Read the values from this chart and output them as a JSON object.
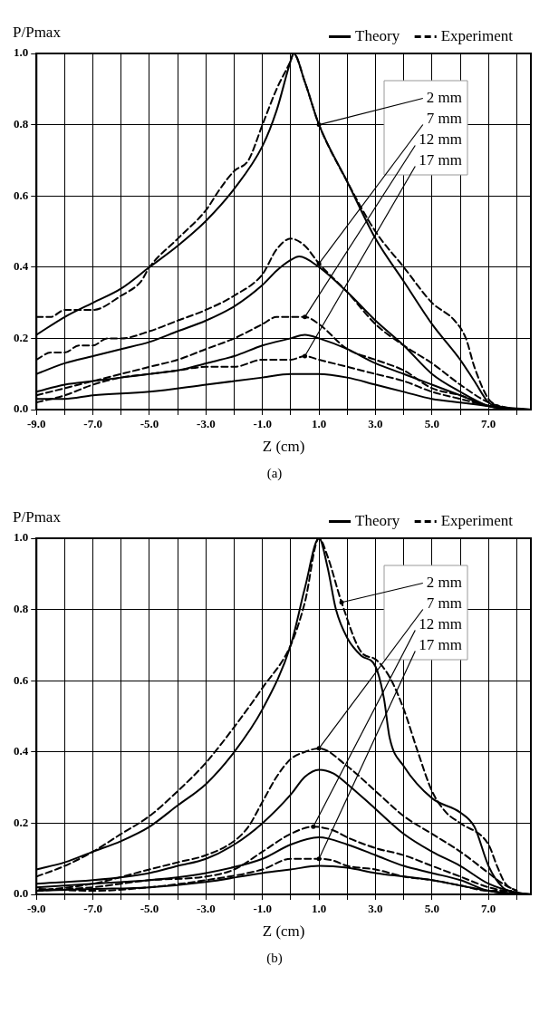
{
  "chart_data": [
    {
      "type": "line",
      "xlabel": "Z (cm)",
      "ylabel": "P/Pmax",
      "xlim": [
        -9,
        8.5
      ],
      "ylim": [
        0,
        1
      ],
      "xticks": [
        {
          "value": -9,
          "label": "-9.0"
        },
        {
          "value": -8,
          "label": null
        },
        {
          "value": -7,
          "label": "-7.0"
        },
        {
          "value": -6,
          "label": null
        },
        {
          "value": -5,
          "label": "-5.0"
        },
        {
          "value": -4,
          "label": null
        },
        {
          "value": -3,
          "label": "-3.0"
        },
        {
          "value": -2,
          "label": null
        },
        {
          "value": -1,
          "label": "-1.0"
        },
        {
          "value": 0,
          "label": null
        },
        {
          "value": 1,
          "label": "1.0"
        },
        {
          "value": 2,
          "label": null
        },
        {
          "value": 3,
          "label": "3.0"
        },
        {
          "value": 4,
          "label": null
        },
        {
          "value": 5,
          "label": "5.0"
        },
        {
          "value": 6,
          "label": null
        },
        {
          "value": 7,
          "label": "7.0"
        },
        {
          "value": 8,
          "label": null
        }
      ],
      "yticks": [
        {
          "value": 0,
          "label": "0.0"
        },
        {
          "value": 0.2,
          "label": "0.2"
        },
        {
          "value": 0.4,
          "label": "0.4"
        },
        {
          "value": 0.6,
          "label": "0.6"
        },
        {
          "value": 0.8,
          "label": "0.8"
        },
        {
          "value": 1,
          "label": "1.0"
        }
      ],
      "grid": true,
      "legend": "top",
      "marker": "none",
      "series": [
        {
          "name": "Theory",
          "color": "#000000",
          "line_style": "solid",
          "x": [
            -9,
            -8,
            -7,
            -6,
            -5,
            -4,
            -3,
            -2,
            -1,
            -0.5,
            0,
            0.1,
            0.5,
            1,
            2,
            3,
            4,
            5,
            6,
            6.5,
            7,
            7.5,
            8.5
          ],
          "values": [
            0.21,
            0.26,
            0.3,
            0.34,
            0.4,
            0.46,
            0.53,
            0.62,
            0.74,
            0.84,
            0.98,
            1.0,
            0.92,
            0.8,
            0.64,
            0.48,
            0.36,
            0.24,
            0.14,
            0.08,
            0.02,
            0.005,
            0
          ]
        },
        {
          "name": "Experiment",
          "color": "#000000",
          "line_style": "dashed",
          "x": [
            -9,
            -8.5,
            -8,
            -7,
            -6,
            -5.3,
            -5,
            -4,
            -3,
            -2.5,
            -2,
            -1.5,
            -1,
            -0.5,
            0,
            0.1,
            0.5,
            1,
            2,
            3,
            4,
            5,
            5.8,
            6.2,
            6.5,
            7,
            7.5
          ],
          "values": [
            0.26,
            0.26,
            0.28,
            0.28,
            0.32,
            0.36,
            0.4,
            0.48,
            0.56,
            0.62,
            0.67,
            0.7,
            0.8,
            0.9,
            0.98,
            1.0,
            0.92,
            0.8,
            0.64,
            0.5,
            0.4,
            0.3,
            0.25,
            0.2,
            0.12,
            0.03,
            0.005
          ]
        },
        {
          "color": "#000000",
          "line_style": "solid",
          "x": [
            -9,
            -8,
            -7,
            -6,
            -5,
            -4,
            -3,
            -2,
            -1,
            -0.5,
            0,
            0.3,
            1,
            2,
            3,
            4,
            5,
            6,
            7,
            7.5,
            8.5
          ],
          "values": [
            0.1,
            0.13,
            0.15,
            0.17,
            0.19,
            0.22,
            0.25,
            0.29,
            0.35,
            0.39,
            0.42,
            0.43,
            0.4,
            0.33,
            0.25,
            0.18,
            0.1,
            0.05,
            0.01,
            0.003,
            0
          ]
        },
        {
          "color": "#000000",
          "line_style": "dashed",
          "x": [
            -9,
            -8.5,
            -8,
            -7.5,
            -7,
            -6.5,
            -6,
            -5,
            -4,
            -3,
            -2,
            -1,
            -0.5,
            0,
            0.5,
            1,
            2,
            3,
            4,
            5,
            6,
            7,
            7.8
          ],
          "values": [
            0.14,
            0.16,
            0.16,
            0.18,
            0.18,
            0.2,
            0.2,
            0.22,
            0.25,
            0.28,
            0.32,
            0.38,
            0.45,
            0.48,
            0.46,
            0.41,
            0.33,
            0.24,
            0.18,
            0.13,
            0.07,
            0.02,
            0.003
          ]
        },
        {
          "color": "#000000",
          "line_style": "solid",
          "x": [
            -9,
            -8,
            -7,
            -6,
            -5,
            -4,
            -3,
            -2,
            -1,
            0,
            0.5,
            1,
            2,
            3,
            4,
            5,
            6,
            7,
            8.5
          ],
          "values": [
            0.05,
            0.07,
            0.08,
            0.09,
            0.1,
            0.11,
            0.13,
            0.15,
            0.18,
            0.2,
            0.21,
            0.2,
            0.17,
            0.13,
            0.1,
            0.07,
            0.04,
            0.01,
            0
          ]
        },
        {
          "color": "#000000",
          "line_style": "dashed",
          "x": [
            -9,
            -8,
            -7,
            -6,
            -5,
            -4,
            -3,
            -2,
            -1,
            -0.5,
            0.5,
            1,
            2,
            3,
            4,
            5,
            6,
            7,
            7.7
          ],
          "values": [
            0.04,
            0.06,
            0.08,
            0.1,
            0.12,
            0.14,
            0.17,
            0.2,
            0.24,
            0.26,
            0.26,
            0.24,
            0.17,
            0.14,
            0.11,
            0.06,
            0.04,
            0.01,
            0.003
          ]
        },
        {
          "color": "#000000",
          "line_style": "solid",
          "x": [
            -9,
            -8,
            -7,
            -5,
            -3,
            -1,
            0,
            0.5,
            1,
            2,
            3,
            4,
            5,
            6,
            7,
            8.5
          ],
          "values": [
            0.03,
            0.03,
            0.04,
            0.05,
            0.07,
            0.09,
            0.1,
            0.1,
            0.1,
            0.09,
            0.07,
            0.05,
            0.03,
            0.02,
            0.01,
            0
          ]
        },
        {
          "color": "#000000",
          "line_style": "dashed",
          "x": [
            -9,
            -8,
            -7,
            -6,
            -5,
            -4,
            -3,
            -2,
            -1,
            0,
            0.5,
            1,
            2,
            3,
            4,
            5,
            6,
            7,
            7.6
          ],
          "values": [
            0.02,
            0.04,
            0.07,
            0.09,
            0.1,
            0.11,
            0.12,
            0.12,
            0.14,
            0.14,
            0.15,
            0.14,
            0.12,
            0.1,
            0.08,
            0.05,
            0.03,
            0.01,
            0.003
          ]
        }
      ],
      "annotations": [
        {
          "text": "2 mm",
          "x": 1,
          "y": 0.8
        },
        {
          "text": "7 mm",
          "x": 1,
          "y": 0.41
        },
        {
          "text": "12 mm",
          "x": 0.5,
          "y": 0.26
        },
        {
          "text": "17 mm",
          "x": 0.5,
          "y": 0.15
        },
        "(a)"
      ]
    },
    {
      "type": "line",
      "xlabel": "Z (cm)",
      "ylabel": "P/Pmax",
      "xlim": [
        -9,
        8.5
      ],
      "ylim": [
        0,
        1
      ],
      "xticks": [
        {
          "value": -9,
          "label": "-9.0"
        },
        {
          "value": -8,
          "label": null
        },
        {
          "value": -7,
          "label": "-7.0"
        },
        {
          "value": -6,
          "label": null
        },
        {
          "value": -5,
          "label": "-5.0"
        },
        {
          "value": -4,
          "label": null
        },
        {
          "value": -3,
          "label": "-3.0"
        },
        {
          "value": -2,
          "label": null
        },
        {
          "value": -1,
          "label": "-1.0"
        },
        {
          "value": 0,
          "label": null
        },
        {
          "value": 1,
          "label": "1.0"
        },
        {
          "value": 2,
          "label": null
        },
        {
          "value": 3,
          "label": "3.0"
        },
        {
          "value": 4,
          "label": null
        },
        {
          "value": 5,
          "label": "5.0"
        },
        {
          "value": 6,
          "label": null
        },
        {
          "value": 7,
          "label": "7.0"
        },
        {
          "value": 8,
          "label": null
        }
      ],
      "yticks": [
        {
          "value": 0,
          "label": "0.0"
        },
        {
          "value": 0.2,
          "label": "0.2"
        },
        {
          "value": 0.4,
          "label": "0.4"
        },
        {
          "value": 0.6,
          "label": "0.6"
        },
        {
          "value": 0.8,
          "label": "0.8"
        },
        {
          "value": 1,
          "label": "1.0"
        }
      ],
      "grid": true,
      "legend": "top",
      "marker": "none",
      "series": [
        {
          "name": "Theory",
          "color": "#000000",
          "line_style": "solid",
          "x": [
            -9,
            -8,
            -7,
            -6,
            -5,
            -4,
            -3,
            -2,
            -1,
            0,
            0.5,
            1,
            1.3,
            1.6,
            2,
            2.5,
            3,
            3.3,
            3.5,
            4,
            5,
            6,
            6.5,
            7,
            7.5,
            8,
            8.5
          ],
          "values": [
            0.07,
            0.09,
            0.12,
            0.15,
            0.19,
            0.25,
            0.31,
            0.4,
            0.52,
            0.7,
            0.86,
            1.0,
            0.92,
            0.8,
            0.72,
            0.67,
            0.64,
            0.55,
            0.44,
            0.36,
            0.27,
            0.23,
            0.19,
            0.08,
            0.02,
            0.005,
            0
          ]
        },
        {
          "name": "Experiment",
          "color": "#000000",
          "line_style": "dashed",
          "x": [
            -9,
            -8,
            -7,
            -6,
            -5,
            -4,
            -3,
            -2,
            -1,
            0,
            0.5,
            1,
            1.3,
            1.8,
            2.5,
            3,
            3.5,
            4,
            4.5,
            5,
            5.5,
            6,
            7,
            7.3,
            7.6,
            8
          ],
          "values": [
            0.05,
            0.08,
            0.12,
            0.17,
            0.22,
            0.29,
            0.37,
            0.47,
            0.58,
            0.7,
            0.82,
            1.0,
            0.95,
            0.82,
            0.68,
            0.66,
            0.61,
            0.52,
            0.4,
            0.29,
            0.23,
            0.2,
            0.14,
            0.08,
            0.03,
            0.01
          ]
        },
        {
          "color": "#000000",
          "line_style": "solid",
          "x": [
            -9,
            -7,
            -5,
            -4,
            -3,
            -2,
            -1,
            0,
            0.5,
            1,
            1.5,
            2,
            3,
            4,
            5,
            6,
            7,
            8,
            8.5
          ],
          "values": [
            0.03,
            0.04,
            0.06,
            0.08,
            0.1,
            0.14,
            0.2,
            0.28,
            0.33,
            0.35,
            0.34,
            0.31,
            0.24,
            0.17,
            0.12,
            0.08,
            0.03,
            0.005,
            0
          ]
        },
        {
          "color": "#000000",
          "line_style": "dashed",
          "x": [
            -9,
            -7,
            -5,
            -4,
            -3,
            -2,
            -1.5,
            -1,
            -0.5,
            0,
            0.5,
            1,
            2,
            3,
            4,
            5,
            6,
            7,
            7.5,
            8
          ],
          "values": [
            0.01,
            0.03,
            0.07,
            0.09,
            0.11,
            0.15,
            0.19,
            0.26,
            0.33,
            0.38,
            0.4,
            0.41,
            0.36,
            0.29,
            0.22,
            0.17,
            0.12,
            0.06,
            0.03,
            0.01
          ]
        },
        {
          "color": "#000000",
          "line_style": "solid",
          "x": [
            -9,
            -7,
            -5,
            -3,
            -1,
            0,
            1,
            2,
            3,
            4,
            5,
            6,
            7,
            8,
            8.5
          ],
          "values": [
            0.02,
            0.03,
            0.04,
            0.06,
            0.1,
            0.14,
            0.16,
            0.14,
            0.11,
            0.08,
            0.06,
            0.04,
            0.01,
            0.003,
            0
          ]
        },
        {
          "color": "#000000",
          "line_style": "dashed",
          "x": [
            -9,
            -7,
            -5,
            -3,
            -2,
            -1,
            0,
            0.8,
            1.5,
            2,
            3,
            4,
            5,
            6,
            7,
            7.9
          ],
          "values": [
            0.01,
            0.02,
            0.04,
            0.05,
            0.07,
            0.12,
            0.17,
            0.19,
            0.18,
            0.16,
            0.13,
            0.11,
            0.08,
            0.05,
            0.02,
            0.005
          ]
        },
        {
          "color": "#000000",
          "line_style": "solid",
          "x": [
            -9,
            -7,
            -5,
            -3,
            -1,
            0,
            1,
            2,
            3,
            4,
            5,
            6,
            7,
            8,
            8.5
          ],
          "values": [
            0.01,
            0.015,
            0.02,
            0.035,
            0.06,
            0.07,
            0.08,
            0.075,
            0.06,
            0.05,
            0.04,
            0.025,
            0.01,
            0,
            0
          ]
        },
        {
          "color": "#000000",
          "line_style": "dashed",
          "x": [
            -8.9,
            -7,
            -5,
            -3,
            -1,
            0,
            1,
            1.5,
            2,
            3,
            4,
            5,
            6,
            7,
            7.8
          ],
          "values": [
            0.015,
            0.01,
            0.02,
            0.04,
            0.07,
            0.1,
            0.1,
            0.095,
            0.08,
            0.07,
            0.05,
            0.04,
            0.025,
            0.01,
            0.01
          ]
        }
      ],
      "annotations": [
        {
          "text": "2 mm",
          "x": 1.8,
          "y": 0.82
        },
        {
          "text": "7 mm",
          "x": 1,
          "y": 0.41
        },
        {
          "text": "12 mm",
          "x": 0.8,
          "y": 0.19
        },
        {
          "text": "17 mm",
          "x": 1,
          "y": 0.1
        },
        "(b)"
      ]
    }
  ]
}
